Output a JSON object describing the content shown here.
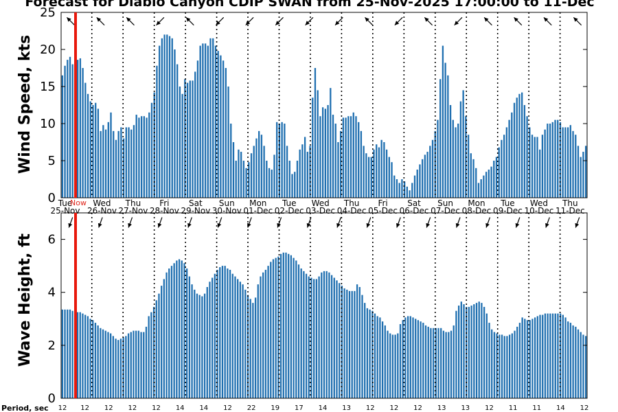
{
  "title": "Forecast for Diablo Canyon CDIP SWAN from 25-Nov-2025 17:00:00 to 11-Dec",
  "now_label": "Now",
  "colors": {
    "bar": "#1f6fb0",
    "now": "#e8180c",
    "axis": "#000000"
  },
  "days": [
    {
      "dow": "Tue",
      "date": "25-Nov"
    },
    {
      "dow": "Wed",
      "date": "26-Nov"
    },
    {
      "dow": "Thu",
      "date": "27-Nov"
    },
    {
      "dow": "Fri",
      "date": "28-Nov"
    },
    {
      "dow": "Sat",
      "date": "29-Nov"
    },
    {
      "dow": "Sun",
      "date": "30-Nov"
    },
    {
      "dow": "Mon",
      "date": "01-Dec"
    },
    {
      "dow": "Tue",
      "date": "02-Dec"
    },
    {
      "dow": "Wed",
      "date": "03-Dec"
    },
    {
      "dow": "Thu",
      "date": "04-Dec"
    },
    {
      "dow": "Fri",
      "date": "05-Dec"
    },
    {
      "dow": "Sat",
      "date": "06-Dec"
    },
    {
      "dow": "Sun",
      "date": "07-Dec"
    },
    {
      "dow": "Mon",
      "date": "08-Dec"
    },
    {
      "dow": "Tue",
      "date": "09-Dec"
    },
    {
      "dow": "Wed",
      "date": "10-Dec"
    },
    {
      "dow": "Thu",
      "date": "11-Dec"
    }
  ],
  "period_label": "Period, sec",
  "periods": [
    "12",
    "12",
    "12",
    "12",
    "12",
    "14",
    "14",
    "12",
    "22",
    "19",
    "17",
    "14",
    "13",
    "12",
    "12",
    "12",
    "13",
    "13",
    "12",
    "11",
    "11",
    "14",
    "12"
  ],
  "chart_data": [
    {
      "type": "bar",
      "ylabel": "Wind Speed, kts",
      "ylim": [
        0,
        25
      ],
      "yticks": [
        0,
        5,
        10,
        15,
        20,
        25
      ],
      "grid": false,
      "values": [
        16.5,
        17.8,
        18.6,
        19.0,
        18.0,
        18.8,
        18.6,
        18.8,
        17.5,
        15.5,
        14.0,
        13.0,
        12.5,
        12.8,
        12.0,
        9.0,
        9.8,
        9.2,
        10.2,
        11.5,
        9.0,
        7.8,
        9.0,
        9.5,
        8.0,
        9.5,
        9.5,
        9.2,
        9.8,
        11.2,
        10.8,
        11.0,
        11.0,
        10.8,
        11.5,
        12.8,
        14.2,
        17.8,
        20.5,
        21.5,
        22.0,
        22.0,
        21.8,
        21.5,
        20.0,
        18.0,
        15.0,
        14.0,
        16.0,
        15.5,
        15.8,
        15.8,
        17.0,
        18.5,
        20.5,
        20.8,
        20.8,
        20.5,
        21.5,
        21.5,
        20.5,
        19.8,
        19.2,
        18.5,
        17.5,
        15.0,
        10.0,
        7.5,
        5.0,
        6.5,
        6.2,
        5.0,
        4.0,
        4.8,
        6.0,
        7.0,
        8.0,
        9.0,
        8.5,
        7.0,
        5.0,
        4.0,
        3.8,
        5.8,
        10.2,
        10.0,
        10.2,
        10.0,
        7.0,
        5.0,
        3.2,
        3.5,
        5.0,
        6.5,
        7.2,
        8.2,
        6.2,
        7.0,
        13.5,
        17.5,
        14.5,
        11.0,
        12.2,
        12.0,
        12.5,
        14.8,
        11.2,
        10.0,
        7.5,
        9.0,
        10.8,
        10.8,
        11.0,
        11.0,
        11.5,
        11.0,
        10.2,
        9.0,
        7.0,
        6.0,
        5.5,
        5.5,
        6.5,
        7.2,
        6.8,
        7.8,
        7.5,
        6.5,
        5.5,
        4.8,
        3.0,
        2.5,
        2.0,
        2.5,
        2.2,
        1.5,
        1.0,
        2.0,
        3.0,
        3.8,
        4.5,
        5.2,
        5.8,
        6.2,
        7.0,
        7.8,
        9.0,
        10.5,
        16.0,
        20.5,
        18.2,
        16.5,
        12.5,
        10.5,
        9.5,
        10.0,
        13.0,
        14.5,
        11.0,
        8.5,
        6.0,
        5.2,
        4.0,
        2.0,
        2.5,
        3.0,
        3.5,
        3.8,
        4.2,
        5.0,
        5.5,
        6.8,
        7.8,
        8.5,
        9.5,
        10.5,
        11.5,
        12.8,
        13.5,
        14.0,
        14.2,
        12.5,
        11.0,
        9.5,
        8.5,
        8.2,
        8.2,
        6.5,
        8.5,
        9.2,
        10.0,
        10.0,
        10.2,
        10.5,
        10.5,
        10.2,
        9.5,
        9.5,
        9.5,
        9.8,
        9.0,
        8.5,
        7.0,
        5.5,
        6.2,
        7.0
      ],
      "direction_deg": [
        225,
        225,
        225,
        135,
        225,
        135,
        135,
        135,
        135,
        135,
        225,
        135,
        225,
        135,
        225,
        225,
        225,
        225
      ]
    },
    {
      "type": "bar",
      "ylabel": "Wave Height, ft",
      "ylim": [
        0,
        7
      ],
      "yticks": [
        0,
        2,
        4,
        6
      ],
      "grid": false,
      "values": [
        3.35,
        3.35,
        3.35,
        3.35,
        3.3,
        3.3,
        3.25,
        3.25,
        3.2,
        3.15,
        3.1,
        3.0,
        2.95,
        2.85,
        2.75,
        2.65,
        2.6,
        2.55,
        2.5,
        2.45,
        2.35,
        2.25,
        2.2,
        2.25,
        2.3,
        2.35,
        2.45,
        2.5,
        2.55,
        2.55,
        2.55,
        2.5,
        2.5,
        2.7,
        3.1,
        3.25,
        3.45,
        3.7,
        3.95,
        4.25,
        4.5,
        4.75,
        4.9,
        5.0,
        5.1,
        5.2,
        5.25,
        5.2,
        5.1,
        4.9,
        4.6,
        4.3,
        4.1,
        3.95,
        3.9,
        3.85,
        3.95,
        4.2,
        4.4,
        4.55,
        4.7,
        4.85,
        4.95,
        5.0,
        5.0,
        4.9,
        4.85,
        4.7,
        4.6,
        4.5,
        4.4,
        4.3,
        4.1,
        3.9,
        3.75,
        3.6,
        3.8,
        4.3,
        4.6,
        4.75,
        4.85,
        5.0,
        5.15,
        5.25,
        5.3,
        5.35,
        5.45,
        5.5,
        5.5,
        5.45,
        5.4,
        5.3,
        5.2,
        5.05,
        4.9,
        4.8,
        4.7,
        4.6,
        4.55,
        4.5,
        4.5,
        4.6,
        4.75,
        4.8,
        4.8,
        4.75,
        4.65,
        4.55,
        4.45,
        4.35,
        4.25,
        4.15,
        4.1,
        4.05,
        4.05,
        4.05,
        4.3,
        4.2,
        3.9,
        3.6,
        3.4,
        3.35,
        3.3,
        3.2,
        3.1,
        3.05,
        2.9,
        2.75,
        2.55,
        2.45,
        2.4,
        2.4,
        2.45,
        2.8,
        2.95,
        3.05,
        3.1,
        3.1,
        3.05,
        3.0,
        2.95,
        2.9,
        2.85,
        2.75,
        2.7,
        2.65,
        2.65,
        2.65,
        2.65,
        2.65,
        2.55,
        2.5,
        2.5,
        2.55,
        2.75,
        3.3,
        3.5,
        3.65,
        3.55,
        3.45,
        3.45,
        3.5,
        3.55,
        3.6,
        3.65,
        3.6,
        3.45,
        3.2,
        2.85,
        2.6,
        2.5,
        2.45,
        2.4,
        2.4,
        2.35,
        2.35,
        2.4,
        2.45,
        2.55,
        2.7,
        2.85,
        3.05,
        3.0,
        2.95,
        2.95,
        3.0,
        3.05,
        3.1,
        3.15,
        3.15,
        3.2,
        3.2,
        3.2,
        3.2,
        3.2,
        3.2,
        3.2,
        3.15,
        3.05,
        2.9,
        2.85,
        2.75,
        2.7,
        2.6,
        2.5,
        2.4,
        2.35
      ],
      "direction_deg": [
        110,
        110,
        110,
        110,
        110,
        110,
        110,
        110,
        110,
        110,
        110,
        110,
        110,
        110,
        110,
        110,
        110,
        110
      ]
    }
  ]
}
